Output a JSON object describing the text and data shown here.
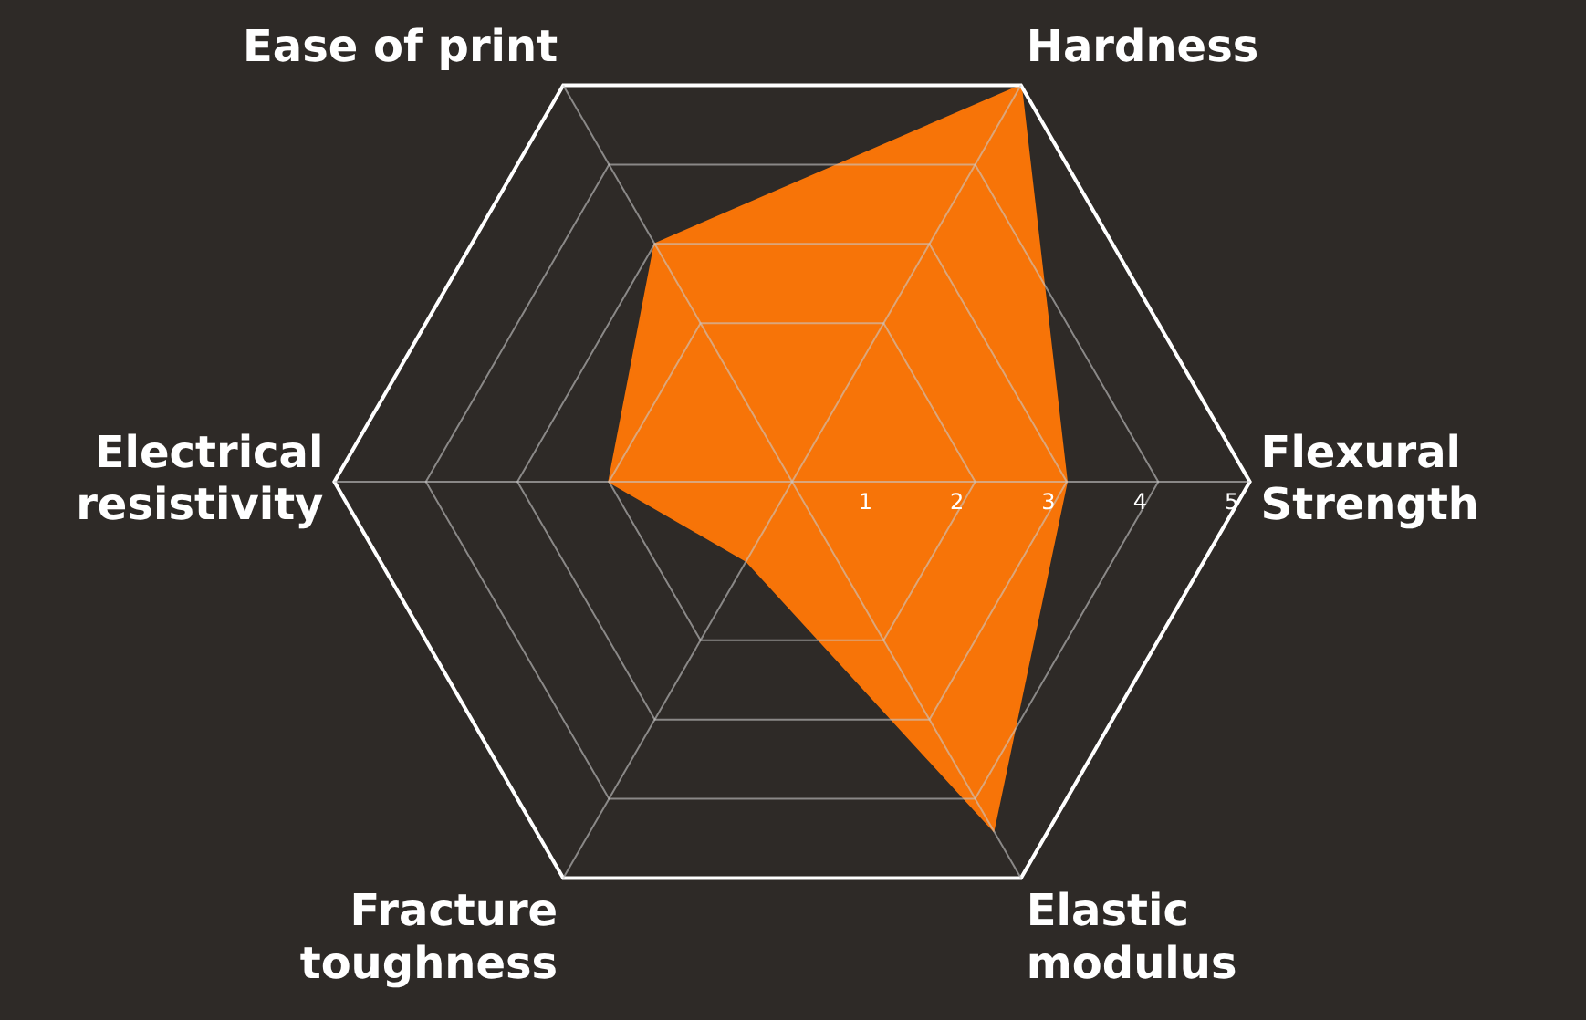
{
  "chart_data": {
    "type": "radar",
    "categories": [
      "Hardness",
      "Flexural Strength",
      "Elastic modulus",
      "Fracture toughness",
      "Electrical resistivity",
      "Ease of print"
    ],
    "series": [
      {
        "color": "#f77408",
        "values": [
          5,
          3,
          4.4,
          1,
          2,
          3
        ]
      }
    ],
    "ylim": [
      0,
      5
    ],
    "yticks": [
      1,
      2,
      3,
      4,
      5
    ],
    "grid": true,
    "legend": false
  }
}
